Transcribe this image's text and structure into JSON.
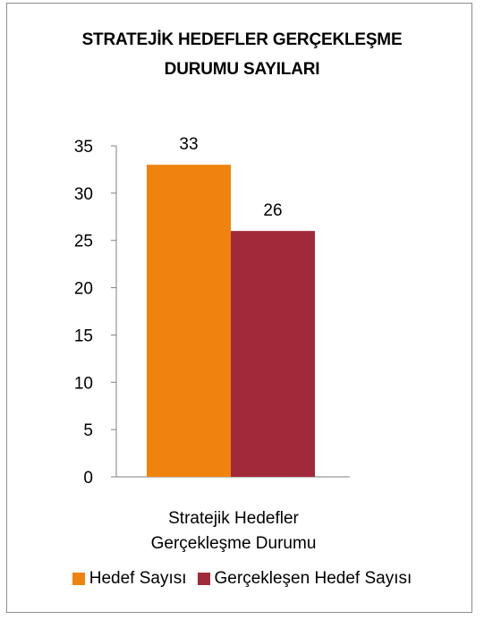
{
  "chart_data": {
    "type": "bar",
    "title": "STRATEJİK HEDEFLER GERÇEKLEŞME DURUMU SAYILARI",
    "title_lines": [
      "STRATEJİK HEDEFLER GERÇEKLEŞME",
      "DURUMU SAYILARI"
    ],
    "categories": [
      "Stratejik Hedefler Gerçekleşme Durumu"
    ],
    "category_lines": [
      "Stratejik Hedefler",
      "Gerçekleşme Durumu"
    ],
    "series": [
      {
        "name": "Hedef Sayısı",
        "values": [
          33
        ],
        "color": "#F0830E"
      },
      {
        "name": "Gerçekleşen Hedef Sayısı",
        "values": [
          26
        ],
        "color": "#A12A3A"
      }
    ],
    "ylim": [
      0,
      35
    ],
    "yticks": [
      0,
      5,
      10,
      15,
      20,
      25,
      30,
      35
    ],
    "xlabel": "",
    "ylabel": "",
    "grid": false,
    "legend": "bottom"
  }
}
